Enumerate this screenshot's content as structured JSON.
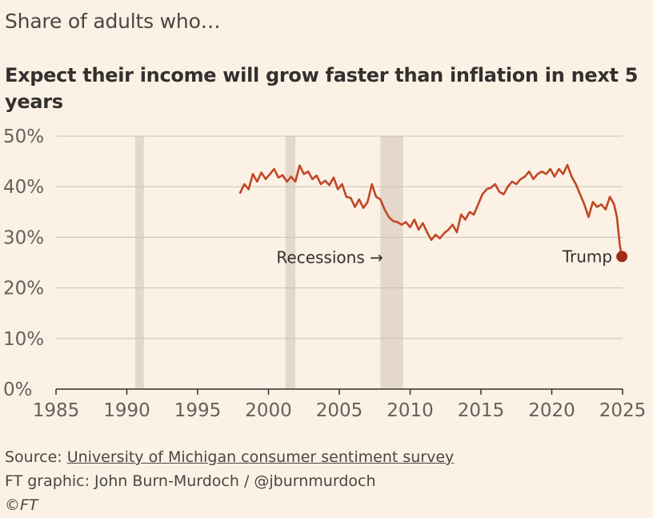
{
  "supertitle": "Share of adults who…",
  "footer": {
    "source_prefix": "Source: ",
    "source_link": "University of Michigan consumer sentiment survey",
    "credit": "FT graphic: John Burn-Murdoch / @jburnmurdoch",
    "copyright": "©FT"
  },
  "colors": {
    "line": "#c14725",
    "dot": "#a12c1a",
    "recession": "#e4d8cd",
    "grid": "#ccc1b7",
    "background": "#fcf1e5"
  },
  "chart_data": {
    "type": "line",
    "title": "Expect their income will grow faster than inflation in next 5 years",
    "xlim": [
      1985,
      2025
    ],
    "ylim": [
      0,
      50
    ],
    "x_ticks": [
      1985,
      1990,
      1995,
      2000,
      2005,
      2010,
      2015,
      2020,
      2025
    ],
    "y_ticks": [
      "0%",
      "10%",
      "20%",
      "30%",
      "40%",
      "50%"
    ],
    "y_tick_values": [
      0,
      10,
      20,
      30,
      40,
      50
    ],
    "grid": "horizontal",
    "recessions": [
      [
        1990.6,
        1991.2
      ],
      [
        2001.2,
        2001.9
      ],
      [
        2007.9,
        2009.5
      ]
    ],
    "annotations": {
      "recessions_label": "Recessions →",
      "trump_label": "Trump",
      "trump_point": {
        "x": 2024.95,
        "y": 26.2
      }
    },
    "series": [
      {
        "x": [
          1998.0,
          1998.3,
          1998.6,
          1998.9,
          1999.2,
          1999.5,
          1999.8,
          2000.1,
          2000.4,
          2000.7,
          2001.0,
          2001.3,
          2001.6,
          2001.9,
          2002.2,
          2002.5,
          2002.8,
          2003.1,
          2003.4,
          2003.7,
          2004.0,
          2004.3,
          2004.6,
          2004.9,
          2005.2,
          2005.5,
          2005.8,
          2006.1,
          2006.4,
          2006.7,
          2007.0,
          2007.3,
          2007.6,
          2007.9,
          2008.2,
          2008.5,
          2008.8,
          2009.1,
          2009.4,
          2009.7,
          2010.0,
          2010.3,
          2010.6,
          2010.9,
          2011.2,
          2011.5,
          2011.8,
          2012.1,
          2012.4,
          2012.7,
          2013.0,
          2013.3,
          2013.6,
          2013.9,
          2014.2,
          2014.5,
          2014.8,
          2015.1,
          2015.4,
          2015.7,
          2016.0,
          2016.3,
          2016.6,
          2016.9,
          2017.2,
          2017.5,
          2017.8,
          2018.1,
          2018.4,
          2018.7,
          2019.0,
          2019.3,
          2019.6,
          2019.9,
          2020.2,
          2020.5,
          2020.8,
          2021.1,
          2021.4,
          2021.7,
          2022.0,
          2022.3,
          2022.6,
          2022.9,
          2023.2,
          2023.5,
          2023.8,
          2024.1,
          2024.4,
          2024.6,
          2024.8,
          2024.95
        ],
        "values": [
          38.8,
          40.5,
          39.5,
          42.5,
          41.0,
          42.8,
          41.5,
          42.5,
          43.5,
          41.8,
          42.3,
          41.0,
          42.0,
          41.0,
          44.2,
          42.5,
          43.0,
          41.5,
          42.2,
          40.5,
          41.2,
          40.3,
          41.8,
          39.5,
          40.5,
          38.0,
          37.8,
          36.0,
          37.5,
          35.8,
          37.0,
          40.5,
          38.0,
          37.5,
          35.5,
          34.0,
          33.2,
          33.0,
          32.5,
          33.0,
          32.0,
          33.5,
          31.5,
          32.8,
          31.0,
          29.5,
          30.5,
          29.8,
          30.8,
          31.5,
          32.5,
          31.0,
          34.5,
          33.5,
          35.0,
          34.5,
          36.5,
          38.5,
          39.5,
          39.8,
          40.5,
          39.0,
          38.5,
          40.0,
          41.0,
          40.5,
          41.5,
          42.0,
          43.0,
          41.5,
          42.5,
          43.0,
          42.5,
          43.5,
          42.0,
          43.5,
          42.5,
          44.3,
          42.0,
          40.5,
          38.5,
          36.5,
          34.0,
          37.0,
          36.0,
          36.5,
          35.5,
          38.0,
          36.5,
          34.0,
          28.5,
          26.2
        ]
      }
    ]
  }
}
